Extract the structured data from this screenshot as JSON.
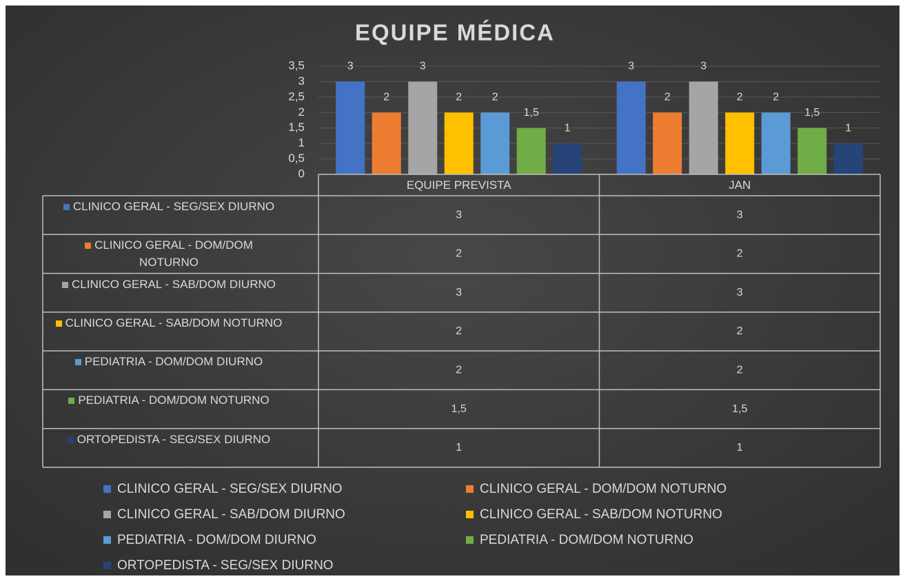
{
  "chart_data": {
    "type": "bar",
    "title": "EQUIPE MÉDICA",
    "categories": [
      "EQUIPE PREVISTA",
      "JAN"
    ],
    "series": [
      {
        "name": "CLINICO GERAL - SEG/SEX DIURNO",
        "color": "#4472c4",
        "values": [
          3,
          3
        ]
      },
      {
        "name": "CLINICO GERAL - DOM/DOM NOTURNO",
        "color": "#ed7d31",
        "values": [
          2,
          2
        ]
      },
      {
        "name": "CLINICO GERAL - SAB/DOM DIURNO",
        "color": "#a5a5a5",
        "values": [
          3,
          3
        ]
      },
      {
        "name": "CLINICO GERAL - SAB/DOM NOTURNO",
        "color": "#ffc000",
        "values": [
          2,
          2
        ]
      },
      {
        "name": "PEDIATRIA - DOM/DOM DIURNO",
        "color": "#5b9bd5",
        "values": [
          2,
          2
        ]
      },
      {
        "name": "PEDIATRIA - DOM/DOM NOTURNO",
        "color": "#70ad47",
        "values": [
          1.5,
          1.5
        ],
        "value_labels": [
          "1,5",
          "1,5"
        ]
      },
      {
        "name": "ORTOPEDISTA - SEG/SEX DIURNO",
        "color": "#264478",
        "values": [
          1,
          1
        ]
      }
    ],
    "ylim": [
      0,
      3.5
    ],
    "yticks": [
      0,
      {
        "value": 0.5,
        "label": "0,5"
      },
      1,
      {
        "value": 1.5,
        "label": "1,5"
      },
      2,
      {
        "value": 2.5,
        "label": "2,5"
      },
      3,
      {
        "value": 3.5,
        "label": "3,5"
      }
    ],
    "grid": true,
    "data_table": true,
    "legend": "bottom"
  }
}
